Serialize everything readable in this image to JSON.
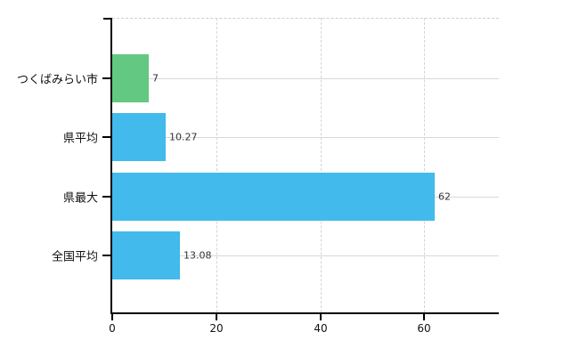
{
  "chart_data": {
    "type": "bar",
    "orientation": "horizontal",
    "title": "",
    "xlabel": "",
    "ylabel": "",
    "categories": [
      "つくばみらい市",
      "県平均",
      "県最大",
      "全国平均"
    ],
    "values": [
      7,
      10.27,
      62,
      13.08
    ],
    "value_labels": [
      "7",
      "10.27",
      "62",
      "13.08"
    ],
    "series": [
      {
        "name": "",
        "values": [
          7,
          10.27,
          62,
          13.08
        ]
      }
    ],
    "bar_colors": [
      "#63c882",
      "#42baeb",
      "#42baeb",
      "#42baeb"
    ],
    "x_ticks": [
      0,
      20,
      40,
      60
    ],
    "x_tick_labels": [
      "0",
      "20",
      "40",
      "60"
    ],
    "xlim": [
      0,
      74.3
    ],
    "grid": true,
    "legend_position": "none",
    "background_color": "#ffffff",
    "axis_color": "#000000",
    "h_gridline_color": "#d9d9d9",
    "v_gridline_color": "#d4d4d4",
    "category_label_color": "#111111",
    "value_label_color": "#333333"
  }
}
